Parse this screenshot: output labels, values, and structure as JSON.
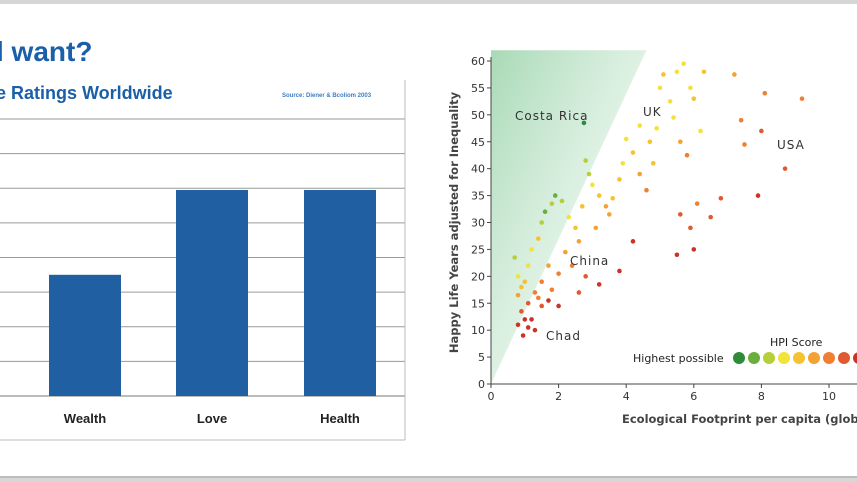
{
  "slide": {
    "title": "l want?",
    "subtitle": "e Ratings Worldwide",
    "source": "Source: Diener & Bcoliom 2003"
  },
  "chart_data": [
    {
      "type": "bar",
      "title": "",
      "categories": [
        "Wealth",
        "Love",
        "Health"
      ],
      "values": [
        3.5,
        5.95,
        5.95
      ],
      "ylim": [
        0,
        8
      ],
      "grid": true,
      "bar_color": "#1f5fa2",
      "xlabel": "",
      "ylabel": ""
    },
    {
      "type": "scatter",
      "xlabel": "Ecological Footprint per capita (globa",
      "ylabel": "Happy Life Years adjusted for Inequality",
      "xlim": [
        0,
        10.5
      ],
      "ylim": [
        0,
        60
      ],
      "xticks": [
        0,
        2,
        4,
        6,
        8,
        10
      ],
      "yticks": [
        0,
        5,
        10,
        15,
        20,
        25,
        30,
        35,
        40,
        45,
        50,
        55,
        60
      ],
      "annotations": [
        {
          "text": "Costa Rica",
          "x": 2.8,
          "y": 48
        },
        {
          "text": "UK",
          "x": 4.9,
          "y": 50
        },
        {
          "text": "USA",
          "x": 8.2,
          "y": 43
        },
        {
          "text": "China",
          "x": 2.0,
          "y": 24
        },
        {
          "text": "Chad",
          "x": 1.2,
          "y": 10
        }
      ],
      "legend": {
        "title": "HPI Score",
        "label": "Highest possible",
        "position": "bottom-right",
        "colors": [
          "#2e8b3a",
          "#6aaf3e",
          "#b5cf3a",
          "#f2e23a",
          "#f6c230",
          "#f3a233",
          "#ef7f31",
          "#e05a2f",
          "#cc3327"
        ]
      },
      "series": [
        {
          "name": "Countries",
          "points": [
            [
              0.7,
              23.5,
              "#b5cf3a"
            ],
            [
              0.8,
              20,
              "#f2e23a"
            ],
            [
              0.9,
              18,
              "#f6c230"
            ],
            [
              0.8,
              16.5,
              "#f3a233"
            ],
            [
              1.0,
              19,
              "#f6c230"
            ],
            [
              1.1,
              22,
              "#f2e23a"
            ],
            [
              1.2,
              25,
              "#f2e23a"
            ],
            [
              1.4,
              27,
              "#f6c230"
            ],
            [
              1.5,
              30,
              "#b5cf3a"
            ],
            [
              1.6,
              32,
              "#6aaf3e"
            ],
            [
              1.8,
              33.5,
              "#b5cf3a"
            ],
            [
              1.9,
              35,
              "#6aaf3e"
            ],
            [
              2.1,
              34,
              "#b5cf3a"
            ],
            [
              2.3,
              31,
              "#f2e23a"
            ],
            [
              2.5,
              29,
              "#f6c230"
            ],
            [
              2.6,
              26.5,
              "#f3a233"
            ],
            [
              2.8,
              41.5,
              "#b5cf3a"
            ],
            [
              2.75,
              48.5,
              "#2e8b3a"
            ],
            [
              2.9,
              39,
              "#b5cf3a"
            ],
            [
              3.0,
              37,
              "#f2e23a"
            ],
            [
              3.2,
              35,
              "#f6c230"
            ],
            [
              3.4,
              33,
              "#f3a233"
            ],
            [
              3.6,
              34.5,
              "#f6c230"
            ],
            [
              3.8,
              38,
              "#f6c230"
            ],
            [
              3.9,
              41,
              "#f2e23a"
            ],
            [
              4.0,
              45.5,
              "#f2e23a"
            ],
            [
              4.2,
              43,
              "#f6c230"
            ],
            [
              4.4,
              39,
              "#f3a233"
            ],
            [
              4.6,
              36,
              "#ef7f31"
            ],
            [
              4.8,
              41,
              "#f6c230"
            ],
            [
              4.9,
              47.5,
              "#f2e23a"
            ],
            [
              5.0,
              55,
              "#f2e23a"
            ],
            [
              5.1,
              57.5,
              "#f6c230"
            ],
            [
              5.3,
              52.5,
              "#f2e23a"
            ],
            [
              5.4,
              49.5,
              "#f2e23a"
            ],
            [
              5.5,
              58,
              "#f2e23a"
            ],
            [
              5.7,
              59.5,
              "#f2e23a"
            ],
            [
              5.9,
              55,
              "#f2e23a"
            ],
            [
              6.0,
              53,
              "#f6c230"
            ],
            [
              6.3,
              58,
              "#f6c230"
            ],
            [
              5.6,
              45,
              "#f3a233"
            ],
            [
              5.8,
              42.5,
              "#ef7f31"
            ],
            [
              6.1,
              33.5,
              "#ef7f31"
            ],
            [
              6.5,
              31,
              "#e05a2f"
            ],
            [
              5.6,
              31.5,
              "#e05a2f"
            ],
            [
              5.9,
              29,
              "#e05a2f"
            ],
            [
              7.2,
              57.5,
              "#f3a233"
            ],
            [
              7.4,
              49,
              "#ef7f31"
            ],
            [
              7.5,
              44.5,
              "#ef7f31"
            ],
            [
              8.1,
              54,
              "#ef7f31"
            ],
            [
              8.0,
              47,
              "#e05a2f"
            ],
            [
              8.7,
              40,
              "#e05a2f"
            ],
            [
              9.2,
              53,
              "#ef7f31"
            ],
            [
              7.9,
              35,
              "#cc3327"
            ],
            [
              6.8,
              34.5,
              "#e05a2f"
            ],
            [
              6.0,
              25,
              "#cc3327"
            ],
            [
              5.5,
              24,
              "#cc3327"
            ],
            [
              4.2,
              26.5,
              "#cc3327"
            ],
            [
              3.8,
              21,
              "#cc3327"
            ],
            [
              3.2,
              18.5,
              "#cc3327"
            ],
            [
              2.8,
              20,
              "#e05a2f"
            ],
            [
              2.4,
              22,
              "#ef7f31"
            ],
            [
              2.2,
              24.5,
              "#f3a233"
            ],
            [
              2.0,
              20.5,
              "#ef7f31"
            ],
            [
              1.7,
              22,
              "#f3a233"
            ],
            [
              1.5,
              19,
              "#ef7f31"
            ],
            [
              1.3,
              17,
              "#ef7f31"
            ],
            [
              1.1,
              15,
              "#e05a2f"
            ],
            [
              0.9,
              13.5,
              "#e05a2f"
            ],
            [
              1.0,
              12,
              "#cc3327"
            ],
            [
              0.8,
              11,
              "#cc3327"
            ],
            [
              1.2,
              12,
              "#cc3327"
            ],
            [
              1.1,
              10.5,
              "#cc3327"
            ],
            [
              1.3,
              10,
              "#cc3327"
            ],
            [
              0.95,
              9,
              "#cc3327"
            ],
            [
              1.5,
              14.5,
              "#e05a2f"
            ],
            [
              1.7,
              15.5,
              "#cc3327"
            ],
            [
              2.0,
              14.5,
              "#cc3327"
            ],
            [
              1.4,
              16,
              "#ef7f31"
            ],
            [
              1.8,
              17.5,
              "#ef7f31"
            ],
            [
              2.6,
              17,
              "#e05a2f"
            ],
            [
              3.1,
              29,
              "#f3a233"
            ],
            [
              3.5,
              31.5,
              "#f3a233"
            ],
            [
              2.7,
              33,
              "#f6c230"
            ],
            [
              4.4,
              48,
              "#f2e23a"
            ],
            [
              4.7,
              45,
              "#f6c230"
            ],
            [
              6.2,
              47,
              "#f2e23a"
            ]
          ]
        }
      ]
    }
  ]
}
